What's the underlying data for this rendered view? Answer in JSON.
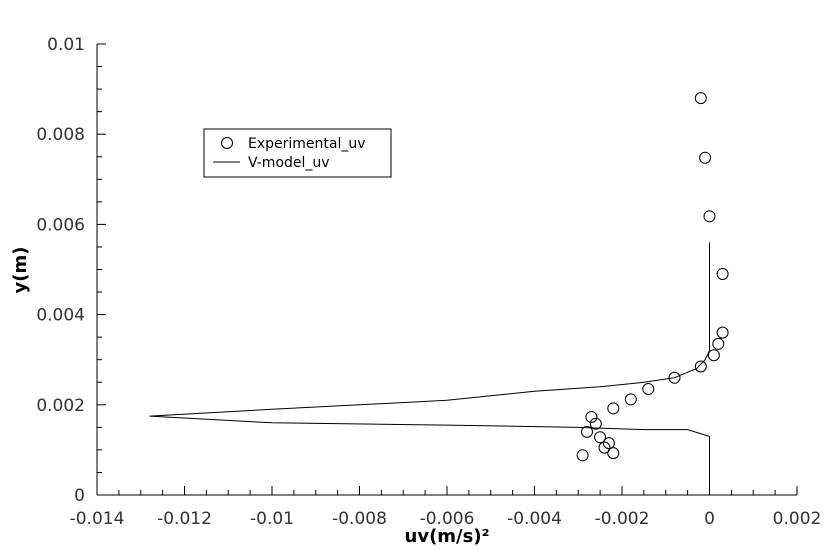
{
  "chart_data": {
    "type": "scatter",
    "xlabel": "uv(m/s)²",
    "ylabel": "y(m)",
    "xlim": [
      -0.014,
      0.002
    ],
    "ylim": [
      0,
      0.01
    ],
    "xticks": [
      "-0.014",
      "-0.012",
      "-0.01",
      "-0.008",
      "-0.006",
      "-0.004",
      "-0.002",
      "0",
      "0.002"
    ],
    "xtick_values": [
      -0.014,
      -0.012,
      -0.01,
      -0.008,
      -0.006,
      -0.004,
      -0.002,
      0,
      0.002
    ],
    "yticks": [
      "0",
      "0.002",
      "0.004",
      "0.006",
      "0.008",
      "0.01"
    ],
    "ytick_values": [
      0,
      0.002,
      0.004,
      0.006,
      0.008,
      0.01
    ],
    "grid": false,
    "legend_position": "upper-left",
    "series": [
      {
        "name": "Experimental_uv",
        "kind": "markers",
        "marker": "open-circle",
        "x": [
          -0.0002,
          -0.0001,
          0.0,
          0.0003,
          0.0003,
          0.0002,
          0.0001,
          -0.0002,
          -0.0008,
          -0.0014,
          -0.0018,
          -0.0022,
          -0.0027,
          -0.0026,
          -0.0028,
          -0.0025,
          -0.0023,
          -0.0024,
          -0.0022,
          -0.0029
        ],
        "y": [
          0.0088,
          0.00748,
          0.00618,
          0.0049,
          0.0036,
          0.00335,
          0.0031,
          0.00285,
          0.0026,
          0.00235,
          0.00212,
          0.00192,
          0.00173,
          0.00158,
          0.0014,
          0.00128,
          0.00115,
          0.00105,
          0.00093,
          0.00088
        ]
      },
      {
        "name": "V-model_uv",
        "kind": "line",
        "x": [
          0.0,
          0.0,
          0.0,
          -0.0001,
          -0.0003,
          -0.0008,
          -0.0015,
          -0.0025,
          -0.004,
          -0.006,
          -0.008,
          -0.01,
          -0.0128,
          -0.01,
          -0.006,
          -0.003,
          -0.0015,
          -0.0005,
          0.0,
          0.0
        ],
        "y": [
          0.0056,
          0.0035,
          0.0032,
          0.003,
          0.0028,
          0.0026,
          0.0025,
          0.0024,
          0.0023,
          0.0021,
          0.002,
          0.0019,
          0.00175,
          0.0016,
          0.00155,
          0.0015,
          0.00145,
          0.00145,
          0.0013,
          0.0
        ]
      }
    ]
  }
}
